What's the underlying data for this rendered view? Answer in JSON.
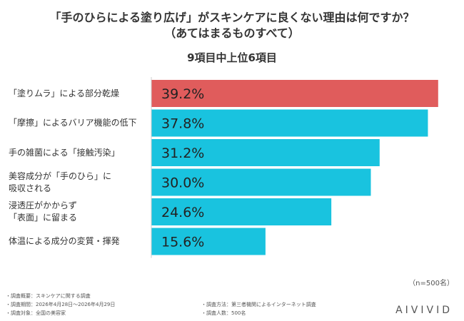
{
  "title": {
    "line1": "「手のひらによる塗り広げ」がスキンケアに良くない理由は何ですか？",
    "line2": "（あてはまるものすべて）"
  },
  "subtitle": "9項目中上位6項目",
  "chart_data": {
    "type": "bar",
    "orientation": "horizontal",
    "title": "「手のひらによる塗り広げ」がスキンケアに良くない理由は何ですか？（あてはまるものすべて）",
    "subtitle": "9項目中上位6項目",
    "categories": [
      "「塗りムラ」による部分乾燥",
      "「摩擦」によるバリア機能の低下",
      "手の雑菌による「接触汚染」",
      "美容成分が「手のひら」に吸収される",
      "浸透圧がかからず「表面」に留まる",
      "体温による成分の変質・揮発"
    ],
    "category_lines": [
      [
        "「塗りムラ」による部分乾燥"
      ],
      [
        "「摩擦」によるバリア機能の低下"
      ],
      [
        "手の雑菌による「接触汚染」"
      ],
      [
        "美容成分が「手のひら」に",
        "吸収される"
      ],
      [
        "浸透圧がかからず",
        "「表面」に留まる"
      ],
      [
        "体温による成分の変質・揮発"
      ]
    ],
    "values": [
      39.2,
      37.8,
      31.2,
      30.0,
      24.6,
      15.6
    ],
    "value_labels": [
      "39.2%",
      "37.8%",
      "31.2%",
      "30.0%",
      "24.6%",
      "15.6%"
    ],
    "highlight_index": 0,
    "colors": {
      "highlight": "#e05c5c",
      "default": "#19c3df"
    },
    "xlim": [
      0,
      40
    ],
    "grid": false,
    "legend": "none"
  },
  "sample_note": "（n=500名）",
  "footnotes": {
    "overview": "・調査概要：スキンケアに関する調査",
    "period": "・調査期間：2026年4月28日〜2026年4月29日",
    "target": "・調査対象：全国の美容家",
    "method": "・調査方法：第三者機関によるインターネット調査",
    "count": "・調査人数：500名"
  },
  "logo": "AIVIVID"
}
